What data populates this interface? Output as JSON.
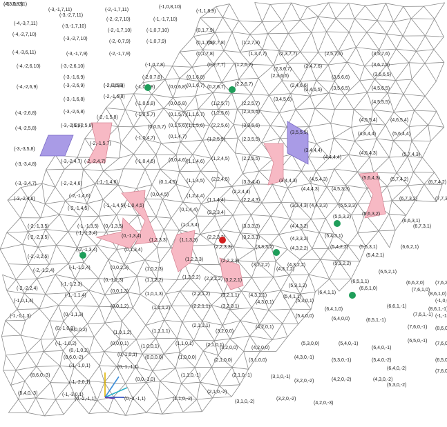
{
  "colors": {
    "edge": "#8a8a8a",
    "label": "#222222",
    "pink_tile": "#f7b9c4",
    "purple_tile": "#a99be6",
    "green_node": "#1f9e5a",
    "red_node": "#d21f1f",
    "axis_x": "#1f3fbf",
    "axis_y": "#e0b400",
    "axis_z": "#2ab0c8",
    "axis_w": "#6a3fa8"
  },
  "labels": [
    "(-5,-3,8,11)",
    "(-3,-1,7,11)",
    "(-2,-1,7,11)",
    "(-1,0,8,10)",
    "(-1,1,8,9)",
    "(-4,-3,7,11)",
    "(-3,-2,7,11)",
    "(-2,-2,7,10)",
    "(-1,-1,7,10)",
    "(-4,-2,7,10)",
    "(-3,-1,7,10)",
    "(-2,-1,7,10)",
    "(-1,0,7,10)",
    "(0,1,7,9)",
    "(-4,-3,6,11)",
    "(-3,-2,7,10)",
    "(-2,-0,7,9)",
    "(-1,0,7,9)",
    "(0,1,7,9)",
    "(-3,-1,7,9)",
    "(-2,-1,7,9)",
    "(0,2,7,8)",
    "(1,2,7,8)",
    "(-4,-2,6,10)",
    "(-3,-2,6,10)",
    "(-1,0,7,8)",
    "(0,1,7,8)",
    "(1,3,7,7)",
    "(2,3,7,7)",
    "(2,5,7,6)",
    "(3,5,7,6)",
    "(-3,-1,6,9)",
    "(-2,-1,6,9)",
    "(-2,0,7,8)",
    "(0,2,7,7)",
    "(1,2,6,7)",
    "(2,3,6,7)",
    "(2,4,7,6)",
    "(3,6,7,5)",
    "(-4,-2,6,9)",
    "(-3,-2,6,9)",
    "(-2,0,6,8)",
    "(-1,0,6,8)",
    "(0,0,6,8)",
    "(0,1,6,8)",
    "(0,2,6,7)",
    "(2,2,6,7)",
    "(2,3,6,6)",
    "(2,4,6,6)",
    "(3,5,6,6)",
    "(3,6,6,5)",
    "(-3,-1,6,8)",
    "(-2,-1,6,8)",
    "(-1,0,5,8)",
    "(0,0,5,8)",
    "(0,1,6,7)",
    "(1,2,5,7)",
    "(2,2,5,7)",
    "(3,4,6,5)",
    "(3,5,6,5)",
    "(4,5,6,5)",
    "(-4,-2,6,8)",
    "(-3,-2,6,8)",
    "(-2,-1,5,8)",
    "(-1,0,5,7)",
    "(0,1,5,7)",
    "(1,1,5,7)",
    "(1,2,5,6)",
    "(2,3,5,6)",
    "(3,4,5,6)",
    "(4,5,5,5)",
    "(-4,-2,5,8)",
    "(-3,-2,5,8)",
    "(-2,-2,5,8)",
    "(0,0,5,7)",
    "(0,1,5,6)",
    "(1,1,5,6)",
    "(2,2,5,6)",
    "(3,3,5,6)",
    "(4,5,5,4)",
    "(4,6,5,4)",
    "(-3,-3,5,8)",
    "(-2,-1,5,7)",
    "(-1,0,4,7)",
    "(0,1,4,7)",
    "(1,2,5,5)",
    "(2,3,5,5)",
    "(3,5,5,5)",
    "(4,6,4,4)",
    "(5,6,4,4)",
    "(-3,-3,4,8)",
    "(-3,-2,4,7)",
    "(-2,-2,4,7)",
    "(-1,0,4,6)",
    "(0,0,4,6)",
    "(1,1,4,6)",
    "(1,2,4,5)",
    "(2,2,5,5)",
    "(3,4,4,4)",
    "(4,4,4,4)",
    "(4,6,4,3)",
    "(5,7,4,3)",
    "(-3,-3,4,7)",
    "(-2,-2,4,6)",
    "(-1,-1,4,6)",
    "(0,1,4,5)",
    "(1,1,4,5)",
    "(2,2,4,5)",
    "(3,3,4,4)",
    "(3,4,4,3)",
    "(4,5,4,3)",
    "(5,6,4,3)",
    "(5,7,4,2)",
    "(6,7,4,2)",
    "(-3,-2,4,6)",
    "(-2,-1,4,6)",
    "(0,0,4,5)",
    "(1,2,4,4)",
    "(2,2,4,4)",
    "(4,4,4,3)",
    "(4,5,3,3)",
    "(6,7,3,2)",
    "(7,7,3,2)",
    "(-2,-1,4,5)",
    "(-1,-1,4,5)",
    "(-1,0,4,5)",
    "(0,1,4,4)",
    "(1,1,4,4)",
    "(2,2,4,3)",
    "(3,3,4,3)",
    "(4,4,3,3)",
    "(5,5,3,3)",
    "(5,6,3,2)",
    "(6,7,3,1)",
    "(-2,-1,3,5)",
    "(-1,-1,3,5)",
    "(0,-1,3,5)",
    "(1,1,3,4)",
    "(2,2,3,4)",
    "(3,3,3,3)",
    "(4,4,3,2)",
    "(5,5,3,2)",
    "(6,6,3,1)",
    "(-2,-2,3,5)",
    "(-1,-1,3,4)",
    "(0,-1,3,4)",
    "(1,1,3,3)",
    "(2,2,3,3)",
    "(3,2,3,3)",
    "(4,3,3,2)",
    "(5,4,3,1)",
    "(-2,-2,2,5)",
    "(-2,-1,3,4)",
    "(0,1,3,4)",
    "(1,2,3,3)",
    "(2,2,3,3)",
    "(3,3,3,2)",
    "(4,3,2,2)",
    "(5,4,2,2)",
    "(5,5,3,1)",
    "(6,6,2,1)",
    "(-2,-1,2,4)",
    "(-1,-1,2,4)",
    "(0,0,2,3)",
    "(1,0,2,3)",
    "(1,2,2,3)",
    "(2,2,2,3)",
    "(3,2,2,2)",
    "(4,3,2,2)",
    "(5,3,2,2)",
    "(5,4,2,1)",
    "(6,5,2,1)",
    "(-2,-2,2,4)",
    "(-1,-1,2,3)",
    "(0,-1,2,3)",
    "(1,1,2,2)",
    "(1,2,2,2)",
    "(2,2,2,2)",
    "(3,2,2,1)",
    "(4,3,1,2)",
    "(5,3,1,2)",
    "(6,5,1,1)",
    "(6,6,2,0)",
    "(7,6,2,0)",
    "(-1,0,1,4)",
    "(-1,-1,1,4)",
    "(0,0,1,3)",
    "(1,0,1,3)",
    "(2,2,1,2)",
    "(3,2,1,1)",
    "(4,3,1,1)",
    "(5,4,1,1)",
    "(6,4,1,1)",
    "(6,6,1,0)",
    "(7,6,1,0)",
    "(8,6,1,0)",
    "(-1,0,0,4)",
    "(-1,-1,1,3)",
    "(0,-1,1,3)",
    "(0,0,1,2)",
    "(1,1,1,2)",
    "(2,2,1,1)",
    "(3,2,0,1)",
    "(4,3,0,1)",
    "(5,3,0,1)",
    "(6,4,1,0)",
    "(6,6,1,-1)",
    "(7,6,1,-1)",
    "(8,6,1,-1)",
    "(-1,-1,0,3)",
    "(0,-1,0,3)",
    "(0,0,0,2)",
    "(1,0,1,2)",
    "(1,1,1,1)",
    "(2,1,1,1)",
    "(3,2,0,0)",
    "(4,2,0,1)",
    "(5,4,0,0)",
    "(6,4,0,0)",
    "(6,5,1,-1)",
    "(7,6,0,-1)",
    "(8,6,0,-1)",
    "(-1,-1,0,2)",
    "(0,-1,0,2)",
    "(0,0,0,1)",
    "(1,0,0,1)",
    "(1,1,0,1)",
    "(2,1,0,1)",
    "(3,2,0,0)",
    "(4,2,0,0)",
    "(5,3,0,0)",
    "(5,4,0,-1)",
    "(6,4,0,-1)",
    "(6,5,0,-1)",
    "(7,6,0,-2)",
    "(8,6,0,-2)",
    "(-1,-1,0,1)",
    "(0,-1,0,1)",
    "(0,0,0,0)",
    "(1,0,0,0)",
    "(2,1,0,0)",
    "(3,1,0,0)",
    "(4,3,0,-1)",
    "(5,3,0,-1)",
    "(5,4,0,-2)",
    "(6,4,0,-2)",
    "(6,5,0,-2)",
    "(7,6,0,-3)",
    "(8,6,0,-3)",
    "(-1,-2,0,1)",
    "(0,-1,-1,1)",
    "(0,0,-1,0)",
    "(1,1,0,-1)",
    "(2,1,0,-1)",
    "(3,1,0,-1)",
    "(3,2,0,-2)",
    "(4,2,0,-2)",
    "(4,3,0,-2)",
    "(5,3,0,-2)",
    "(5,4,0,-3)",
    "(-1,-3,0,1)",
    "(0,-2,-1,1)",
    "(0,-3,-1,1)",
    "(1,1,0,-2)",
    "(2,1,0,-2)",
    "(3,1,0,-2)",
    "(3,2,0,-2)",
    "(4,2,0,-3)",
    "(4,3,0,-3)"
  ]
}
